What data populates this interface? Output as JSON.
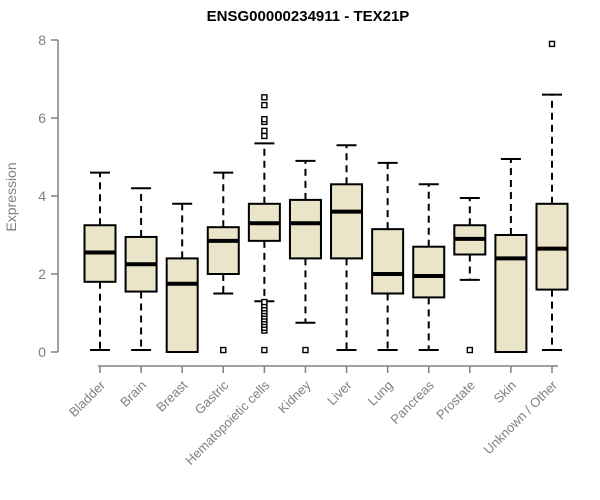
{
  "chart_data": {
    "type": "boxplot",
    "title": "ENSG00000234911 - TEX21P",
    "ylabel": "Expression",
    "xlabel": "",
    "ylim": [
      0,
      8
    ],
    "yticks": [
      0,
      2,
      4,
      6,
      8
    ],
    "grid": false,
    "legend": false,
    "categories": [
      "Bladder",
      "Brain",
      "Breast",
      "Gastric",
      "Hematopoietic cells",
      "Kidney",
      "Liver",
      "Lung",
      "Pancreas",
      "Prostate",
      "Skin",
      "Unknown / Other"
    ],
    "series": [
      {
        "name": "Bladder",
        "whisker_low": 0.05,
        "q1": 1.8,
        "median": 2.55,
        "q3": 3.25,
        "whisker_high": 4.6,
        "outliers": []
      },
      {
        "name": "Brain",
        "whisker_low": 0.05,
        "q1": 1.55,
        "median": 2.25,
        "q3": 2.95,
        "whisker_high": 4.2,
        "outliers": []
      },
      {
        "name": "Breast",
        "whisker_low": 0.0,
        "q1": 0.0,
        "median": 1.75,
        "q3": 2.4,
        "whisker_high": 3.8,
        "outliers": []
      },
      {
        "name": "Gastric",
        "whisker_low": 1.5,
        "q1": 2.0,
        "median": 2.85,
        "q3": 3.2,
        "whisker_high": 4.6,
        "outliers": [
          0.05
        ]
      },
      {
        "name": "Hematopoietic cells",
        "whisker_low": 1.3,
        "q1": 2.85,
        "median": 3.3,
        "q3": 3.8,
        "whisker_high": 5.35,
        "outliers": [
          0.05,
          0.55,
          0.62,
          0.7,
          0.77,
          0.84,
          0.91,
          0.98,
          1.05,
          1.12,
          1.2,
          1.28,
          5.54,
          5.67,
          5.9,
          5.97,
          6.33,
          6.53
        ]
      },
      {
        "name": "Kidney",
        "whisker_low": 0.75,
        "q1": 2.4,
        "median": 3.3,
        "q3": 3.9,
        "whisker_high": 4.9,
        "outliers": [
          0.05
        ]
      },
      {
        "name": "Liver",
        "whisker_low": 0.05,
        "q1": 2.4,
        "median": 3.6,
        "q3": 4.3,
        "whisker_high": 5.3,
        "outliers": []
      },
      {
        "name": "Lung",
        "whisker_low": 0.05,
        "q1": 1.5,
        "median": 2.0,
        "q3": 3.15,
        "whisker_high": 4.85,
        "outliers": []
      },
      {
        "name": "Pancreas",
        "whisker_low": 0.05,
        "q1": 1.4,
        "median": 1.95,
        "q3": 2.7,
        "whisker_high": 4.3,
        "outliers": []
      },
      {
        "name": "Prostate",
        "whisker_low": 1.85,
        "q1": 2.5,
        "median": 2.9,
        "q3": 3.25,
        "whisker_high": 3.95,
        "outliers": [
          0.05
        ]
      },
      {
        "name": "Skin",
        "whisker_low": 0.0,
        "q1": 0.0,
        "median": 2.4,
        "q3": 3.0,
        "whisker_high": 4.95,
        "outliers": []
      },
      {
        "name": "Unknown / Other",
        "whisker_low": 0.05,
        "q1": 1.6,
        "median": 2.65,
        "q3": 3.8,
        "whisker_high": 6.6,
        "outliers": [
          7.9
        ]
      }
    ],
    "style": {
      "box_fill": "#EAE5C9",
      "box_stroke": "#000000",
      "median_color": "#000000",
      "whisker_color": "#000000",
      "axis_color": "#808080",
      "text_color": "#808080",
      "title_color": "#000000"
    }
  }
}
